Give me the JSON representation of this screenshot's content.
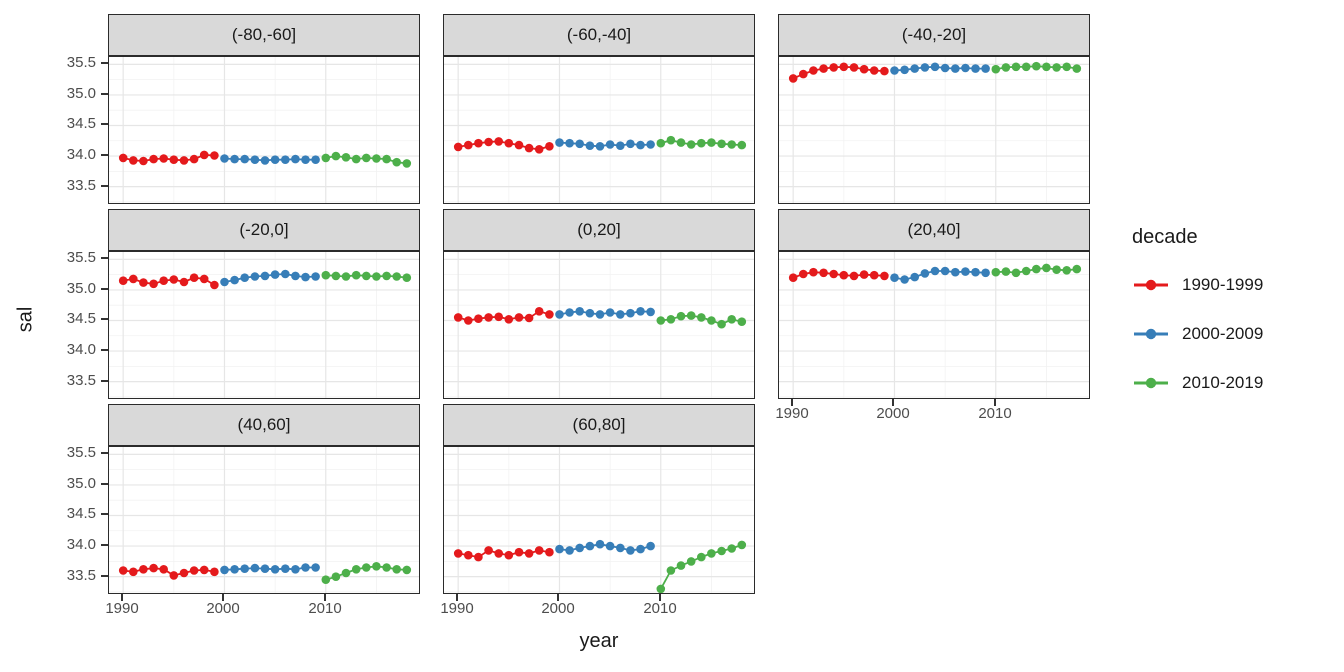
{
  "chart_data": {
    "type": "scatter",
    "title": "",
    "xlabel": "year",
    "ylabel": "sal",
    "grid": true,
    "xlim": [
      1988.6,
      2019.4
    ],
    "ylim": [
      33.2,
      35.62
    ],
    "x_ticks": [
      1990,
      2000,
      2010
    ],
    "x_minor": [
      1995,
      2005,
      2015
    ],
    "y_ticks": [
      33.5,
      34.0,
      34.5,
      35.0,
      35.5
    ],
    "y_minor": [
      33.25,
      33.75,
      34.25,
      34.75,
      35.25
    ],
    "legend": {
      "title": "decade",
      "position": "right",
      "entries": [
        {
          "label": "1990-1999",
          "color": "#E41A1C",
          "year_range": [
            1990,
            1999
          ]
        },
        {
          "label": "2000-2009",
          "color": "#377EB8",
          "year_range": [
            2000,
            2009
          ]
        },
        {
          "label": "2010-2019",
          "color": "#4DAF4A",
          "year_range": [
            2010,
            2019
          ]
        }
      ]
    },
    "years": [
      1990,
      1991,
      1992,
      1993,
      1994,
      1995,
      1996,
      1997,
      1998,
      1999,
      2000,
      2001,
      2002,
      2003,
      2004,
      2005,
      2006,
      2007,
      2008,
      2009,
      2010,
      2011,
      2012,
      2013,
      2014,
      2015,
      2016,
      2017,
      2018
    ],
    "facets": [
      {
        "label": "(-80,-60]",
        "show_y_axis": true,
        "show_x_axis": false,
        "values": [
          33.97,
          33.93,
          33.92,
          33.95,
          33.96,
          33.94,
          33.93,
          33.95,
          34.02,
          34.01,
          33.96,
          33.95,
          33.95,
          33.94,
          33.93,
          33.94,
          33.94,
          33.95,
          33.94,
          33.94,
          33.97,
          34.0,
          33.98,
          33.95,
          33.97,
          33.96,
          33.95,
          33.9,
          33.88
        ]
      },
      {
        "label": "(-60,-40]",
        "show_y_axis": false,
        "show_x_axis": false,
        "values": [
          34.15,
          34.18,
          34.21,
          34.23,
          34.24,
          34.21,
          34.18,
          34.13,
          34.11,
          34.16,
          34.22,
          34.21,
          34.2,
          34.17,
          34.16,
          34.19,
          34.17,
          34.2,
          34.18,
          34.19,
          34.21,
          34.26,
          34.22,
          34.19,
          34.21,
          34.22,
          34.2,
          34.19,
          34.18
        ]
      },
      {
        "label": "(-40,-20]",
        "show_y_axis": false,
        "show_x_axis": false,
        "values": [
          35.27,
          35.34,
          35.4,
          35.43,
          35.45,
          35.46,
          35.45,
          35.42,
          35.4,
          35.39,
          35.4,
          35.41,
          35.43,
          35.45,
          35.46,
          35.44,
          35.43,
          35.44,
          35.43,
          35.43,
          35.42,
          35.45,
          35.46,
          35.46,
          35.47,
          35.46,
          35.45,
          35.46,
          35.43
        ]
      },
      {
        "label": "(-20,0]",
        "show_y_axis": true,
        "show_x_axis": false,
        "values": [
          35.15,
          35.18,
          35.12,
          35.1,
          35.15,
          35.17,
          35.13,
          35.2,
          35.18,
          35.08,
          35.13,
          35.16,
          35.2,
          35.22,
          35.23,
          35.25,
          35.26,
          35.23,
          35.21,
          35.22,
          35.24,
          35.23,
          35.22,
          35.24,
          35.23,
          35.22,
          35.23,
          35.22,
          35.2
        ]
      },
      {
        "label": "(0,20]",
        "show_y_axis": false,
        "show_x_axis": false,
        "values": [
          34.55,
          34.5,
          34.53,
          34.55,
          34.56,
          34.52,
          34.55,
          34.54,
          34.65,
          34.6,
          34.6,
          34.63,
          34.65,
          34.62,
          34.6,
          34.63,
          34.6,
          34.62,
          34.65,
          34.64,
          34.5,
          34.52,
          34.57,
          34.58,
          34.55,
          34.5,
          34.44,
          34.52,
          34.48
        ]
      },
      {
        "label": "(20,40]",
        "show_y_axis": false,
        "show_x_axis": true,
        "values": [
          35.2,
          35.26,
          35.29,
          35.28,
          35.26,
          35.24,
          35.23,
          35.25,
          35.24,
          35.23,
          35.2,
          35.17,
          35.21,
          35.27,
          35.31,
          35.31,
          35.29,
          35.3,
          35.29,
          35.28,
          35.29,
          35.3,
          35.28,
          35.31,
          35.34,
          35.36,
          35.33,
          35.32,
          35.34
        ]
      },
      {
        "label": "(40,60]",
        "show_y_axis": true,
        "show_x_axis": true,
        "values": [
          33.6,
          33.58,
          33.62,
          33.64,
          33.62,
          33.52,
          33.56,
          33.6,
          33.61,
          33.58,
          33.61,
          33.62,
          33.63,
          33.64,
          33.63,
          33.62,
          33.63,
          33.62,
          33.65,
          33.65,
          33.45,
          33.5,
          33.56,
          33.62,
          33.65,
          33.67,
          33.65,
          33.62,
          33.61
        ]
      },
      {
        "label": "(60,80]",
        "show_y_axis": false,
        "show_x_axis": true,
        "values": [
          33.88,
          33.85,
          33.82,
          33.93,
          33.88,
          33.85,
          33.9,
          33.88,
          33.93,
          33.9,
          33.95,
          33.93,
          33.97,
          34.0,
          34.03,
          34.0,
          33.97,
          33.93,
          33.95,
          34.0,
          33.3,
          33.6,
          33.68,
          33.75,
          33.82,
          33.88,
          33.92,
          33.96,
          34.02
        ]
      }
    ],
    "style": {
      "strip_bg": "#d9d9d9",
      "panel_border": "#2b2b2b",
      "grid_major": "#e6e6e6",
      "grid_minor": "#f2f2f2",
      "tick_label_color": "#4d4d4d",
      "text_color": "#1a1a1a"
    }
  }
}
